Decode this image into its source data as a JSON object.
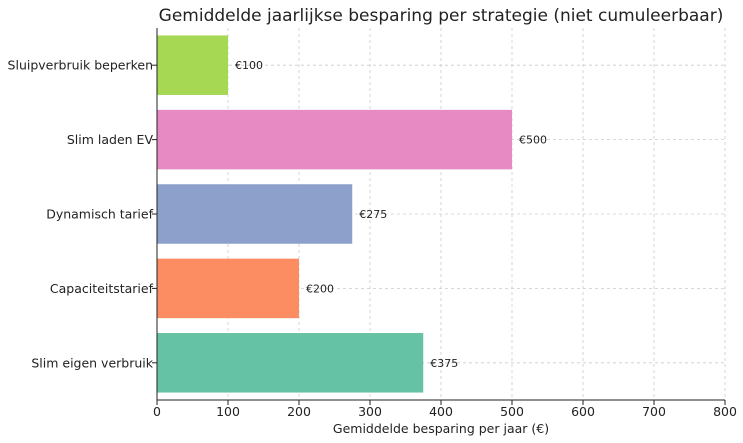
{
  "chart_data": {
    "type": "bar",
    "orientation": "horizontal",
    "title": "Gemiddelde jaarlijkse besparing per strategie (niet cumuleerbaar)",
    "xlabel": "Gemiddelde besparing per jaar (€)",
    "ylabel": "",
    "xlim": [
      0,
      800
    ],
    "xticks": [
      0,
      100,
      200,
      300,
      400,
      500,
      600,
      700,
      800
    ],
    "grid": true,
    "categories": [
      "Sluipverbruik beperken",
      "Slim laden EV",
      "Dynamisch tarief",
      "Capaciteitstarief",
      "Slim eigen verbruik"
    ],
    "values": [
      100,
      500,
      275,
      200,
      375
    ],
    "value_labels": [
      "€100",
      "€500",
      "€275",
      "€200",
      "€375"
    ],
    "colors": [
      "#a6d854",
      "#e78ac3",
      "#8da0cb",
      "#fc8d62",
      "#66c2a5"
    ]
  }
}
